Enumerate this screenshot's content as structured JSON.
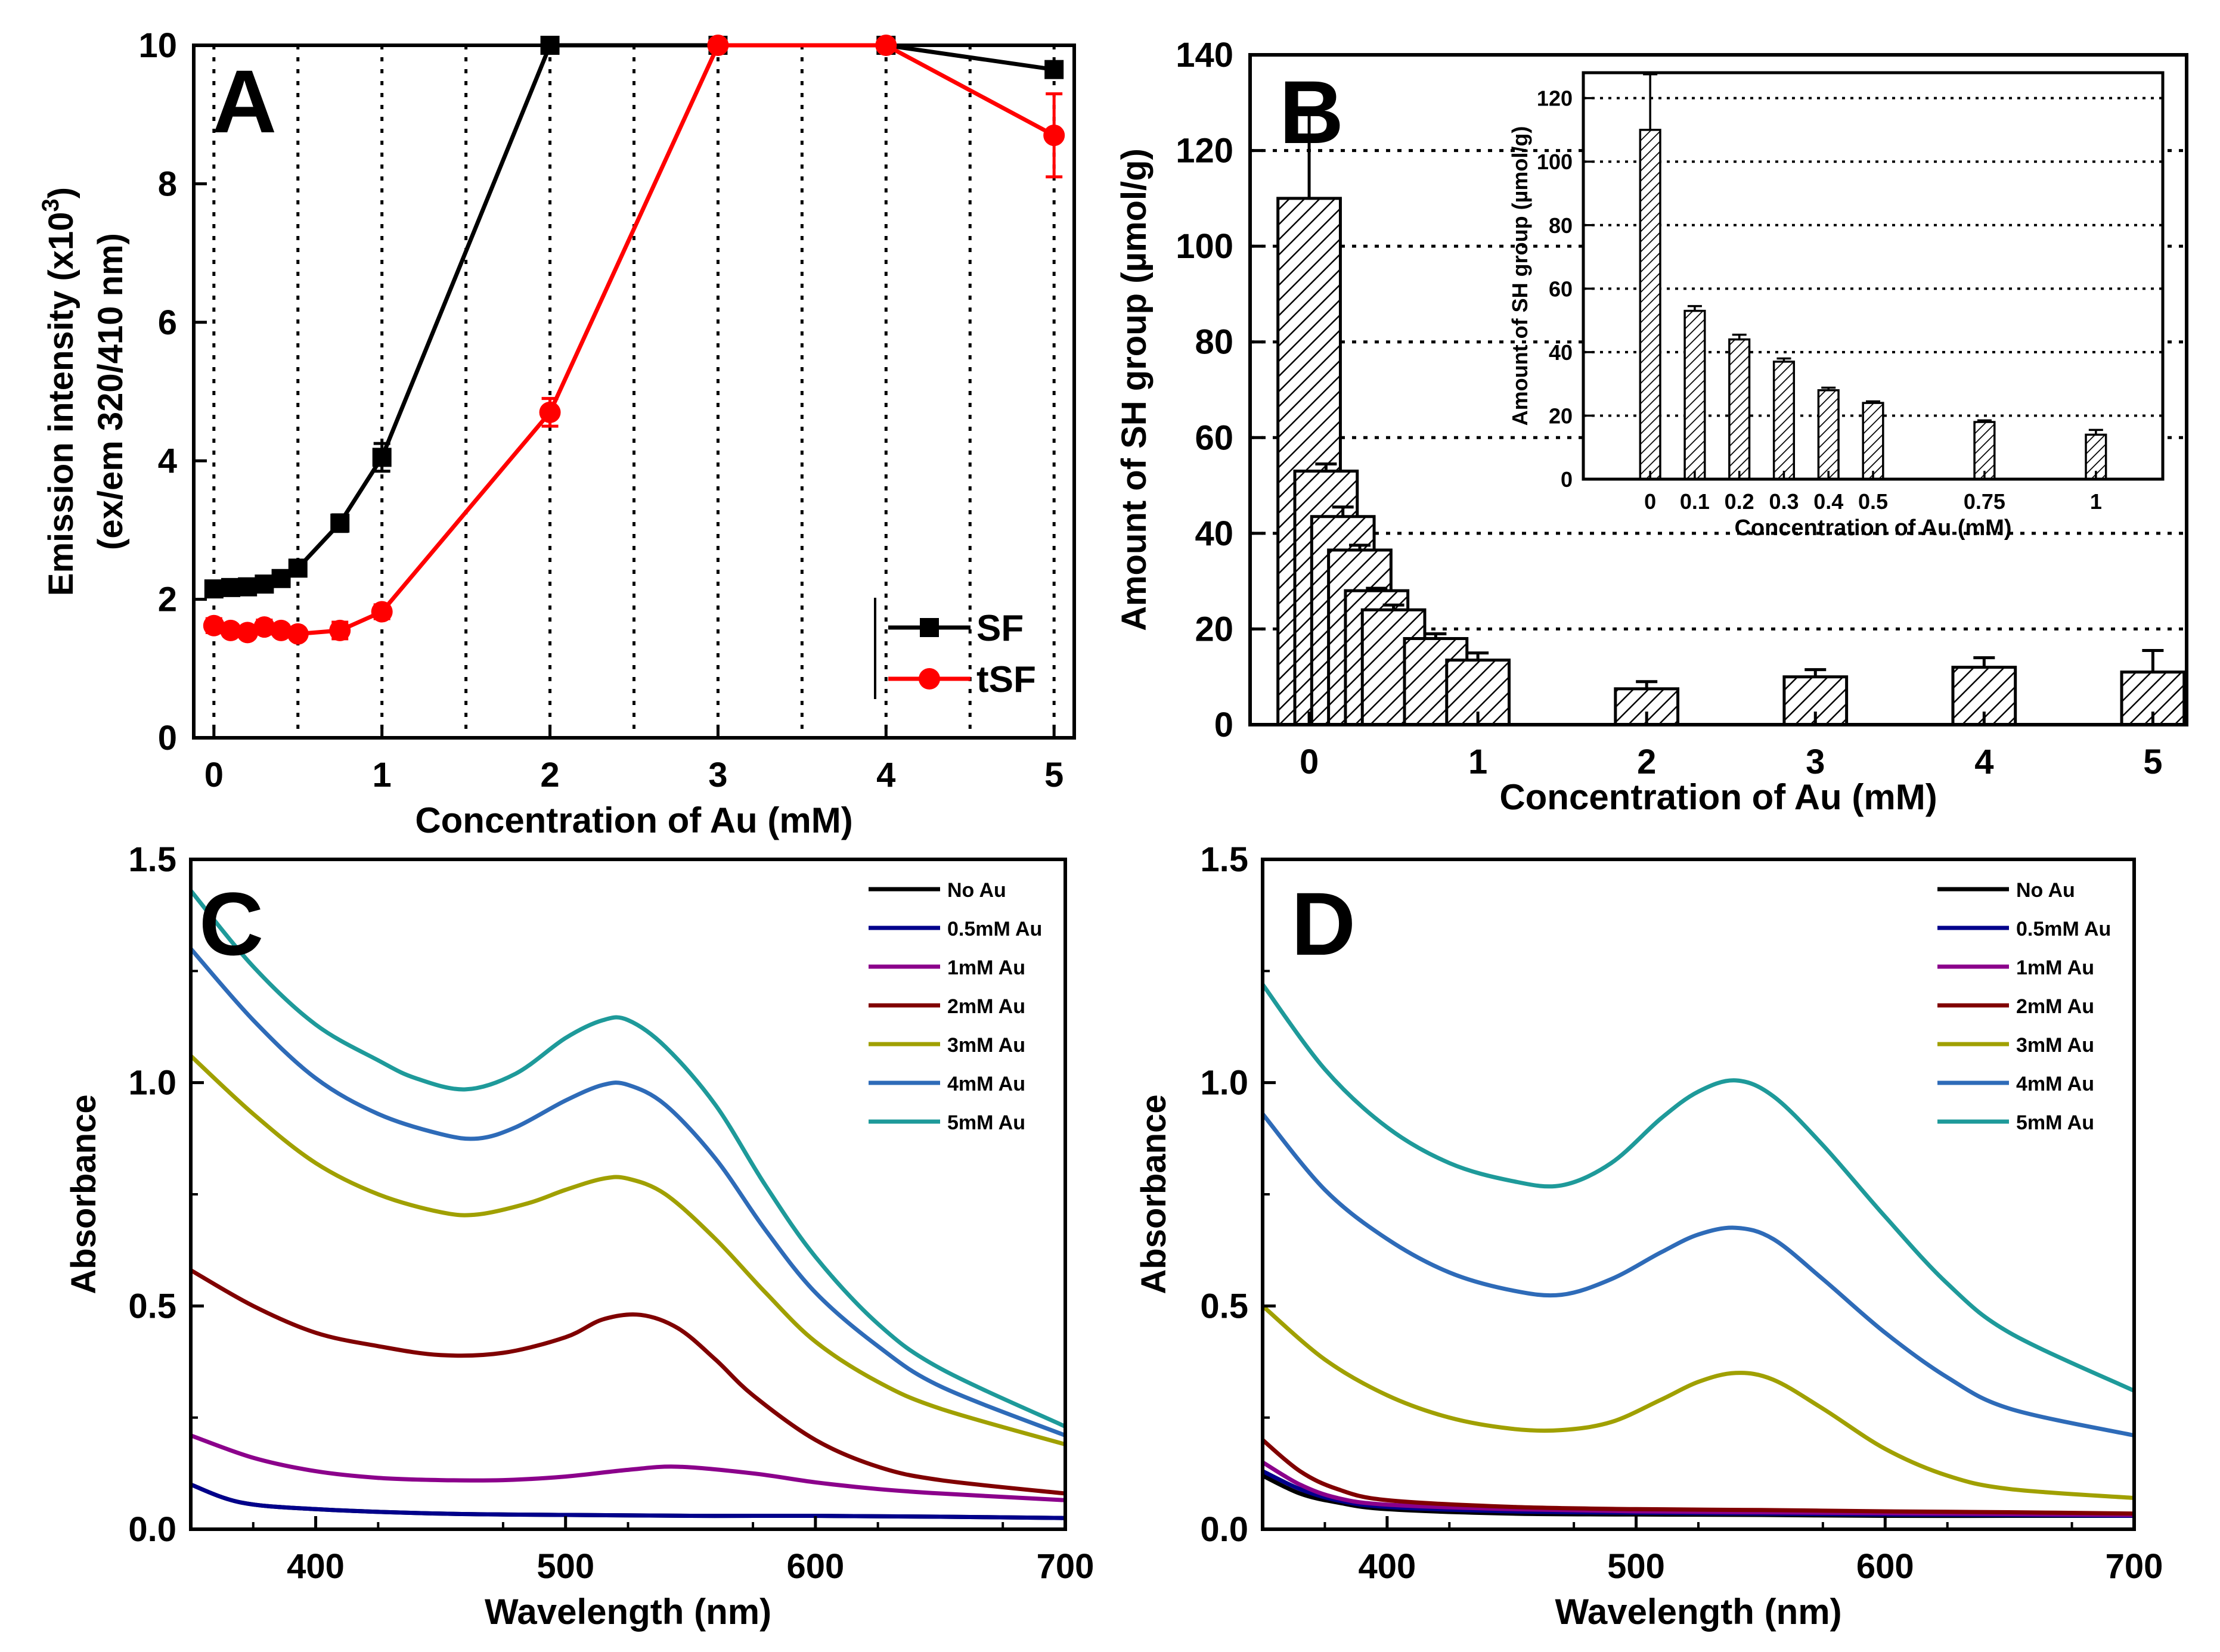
{
  "chart_data": [
    {
      "id": "A",
      "type": "line",
      "panel_label": "A",
      "xlabel": "Concentration of Au (mM)",
      "ylabel_line1": "Emission intensity (x10",
      "ylabel_sup": "3",
      "ylabel_line1_end": ")",
      "ylabel_line2": "(ex/em 320/410 nm)",
      "xlim": [
        -0.12,
        5.12
      ],
      "ylim": [
        0,
        10
      ],
      "xticks": [
        "0",
        "1",
        "2",
        "3",
        "4",
        "5"
      ],
      "xtick_values": [
        0,
        1,
        2,
        3,
        4,
        5
      ],
      "yticks": [
        "0",
        "2",
        "4",
        "6",
        "8",
        "10"
      ],
      "ytick_values": [
        0,
        2,
        4,
        6,
        8,
        10
      ],
      "gridlines_x": [
        0,
        0.5,
        1,
        1.5,
        2,
        2.5,
        3,
        3.5,
        4,
        4.5,
        5
      ],
      "legend_position": "bottom-right",
      "series": [
        {
          "name": "SF",
          "color": "#000000",
          "marker": "square",
          "x": [
            0,
            0.1,
            0.2,
            0.3,
            0.4,
            0.5,
            0.75,
            1,
            2,
            3,
            4,
            5
          ],
          "y": [
            2.15,
            2.17,
            2.18,
            2.22,
            2.3,
            2.45,
            3.1,
            4.05,
            10.0,
            10.0,
            10.0,
            9.65
          ],
          "err": [
            0.06,
            0.05,
            0.05,
            0.05,
            0.05,
            0.08,
            0.12,
            0.2,
            0.05,
            0.05,
            0.05,
            0.1
          ]
        },
        {
          "name": "tSF",
          "color": "#ff0000",
          "marker": "circle",
          "x": [
            0,
            0.1,
            0.2,
            0.3,
            0.4,
            0.5,
            0.75,
            1,
            2,
            3,
            4,
            5
          ],
          "y": [
            1.62,
            1.55,
            1.52,
            1.6,
            1.55,
            1.5,
            1.55,
            1.82,
            4.7,
            10.0,
            10.0,
            8.7
          ],
          "err": [
            0.1,
            0.08,
            0.08,
            0.1,
            0.08,
            0.08,
            0.12,
            0.1,
            0.2,
            0.05,
            0.05,
            0.6
          ]
        }
      ]
    },
    {
      "id": "B",
      "type": "bar",
      "panel_label": "B",
      "xlabel": "Concentration of Au (mM)",
      "ylabel": "Amount of SH group (µmol/g)",
      "xlim": [
        -0.35,
        5.2
      ],
      "ylim": [
        0,
        140
      ],
      "xticks": [
        "0",
        "1",
        "2",
        "3",
        "4",
        "5"
      ],
      "xtick_values": [
        0,
        1,
        2,
        3,
        4,
        5
      ],
      "yticks": [
        "0",
        "20",
        "40",
        "60",
        "80",
        "100",
        "120",
        "140"
      ],
      "ytick_values": [
        0,
        20,
        40,
        60,
        80,
        100,
        120,
        140
      ],
      "gridlines_y": [
        20,
        40,
        60,
        80,
        100,
        120,
        140
      ],
      "x": [
        0,
        0.1,
        0.2,
        0.3,
        0.4,
        0.5,
        0.75,
        1,
        2,
        3,
        4,
        5
      ],
      "values": [
        110,
        53,
        43.5,
        36.5,
        28,
        24,
        18,
        13.5,
        7.5,
        10,
        12,
        11
      ],
      "err": [
        17.5,
        1.5,
        2,
        1,
        0.5,
        1,
        1,
        1.5,
        1.5,
        1.5,
        2,
        4.5
      ],
      "bar_width": 0.37,
      "inset": {
        "type": "bar",
        "xlabel": "Concentration of Au (mM)",
        "ylabel": "Amount of SH group (µmol/g)",
        "ylim": [
          0,
          128
        ],
        "yticks": [
          "0",
          "20",
          "40",
          "60",
          "80",
          "100",
          "120"
        ],
        "ytick_values": [
          0,
          20,
          40,
          60,
          80,
          100,
          120
        ],
        "gridlines_y": [
          20,
          40,
          60,
          80,
          100,
          120
        ],
        "xlim": [
          -0.15,
          1.15
        ],
        "categories": [
          "0",
          "0.1",
          "0.2",
          "0.3",
          "0.4",
          "0.5",
          "0.75",
          "1"
        ],
        "x": [
          0,
          0.1,
          0.2,
          0.3,
          0.4,
          0.5,
          0.75,
          1
        ],
        "values": [
          110,
          53,
          44,
          37,
          28,
          24,
          18,
          14
        ],
        "err": [
          17.5,
          1.5,
          1.5,
          1,
          0.8,
          0.5,
          0.5,
          1.5
        ],
        "bar_width": 0.045
      }
    },
    {
      "id": "C",
      "type": "line",
      "panel_label": "C",
      "xlabel": "Wavelength (nm)",
      "ylabel": "Absorbance",
      "xlim": [
        350,
        700
      ],
      "ylim": [
        0,
        1.5
      ],
      "xticks": [
        "400",
        "500",
        "600",
        "700"
      ],
      "xtick_values": [
        400,
        500,
        600,
        700
      ],
      "yticks": [
        "0.0",
        "0.5",
        "1.0",
        "1.5"
      ],
      "ytick_values": [
        0,
        0.5,
        1.0,
        1.5
      ],
      "legend_position": "top-right",
      "series": [
        {
          "name": "No Au",
          "color": "#000000",
          "x": [
            350,
            370,
            400,
            450,
            500,
            550,
            600,
            650,
            700
          ],
          "y": [
            0.1,
            0.06,
            0.045,
            0.035,
            0.032,
            0.03,
            0.03,
            0.028,
            0.025
          ]
        },
        {
          "name": "0.5mM Au",
          "color": "#00008b",
          "x": [
            350,
            370,
            400,
            450,
            500,
            550,
            600,
            650,
            700
          ],
          "y": [
            0.1,
            0.06,
            0.045,
            0.035,
            0.032,
            0.03,
            0.03,
            0.028,
            0.025
          ]
        },
        {
          "name": "1mM Au",
          "color": "#8b008b",
          "x": [
            350,
            375,
            400,
            425,
            450,
            475,
            500,
            525,
            545,
            575,
            600,
            625,
            650,
            700
          ],
          "y": [
            0.21,
            0.16,
            0.13,
            0.115,
            0.11,
            0.11,
            0.118,
            0.133,
            0.14,
            0.125,
            0.105,
            0.09,
            0.08,
            0.065
          ]
        },
        {
          "name": "2mM Au",
          "color": "#800000",
          "x": [
            350,
            375,
            400,
            425,
            450,
            475,
            500,
            515,
            530,
            545,
            560,
            575,
            600,
            625,
            650,
            700
          ],
          "y": [
            0.58,
            0.5,
            0.44,
            0.41,
            0.39,
            0.395,
            0.43,
            0.47,
            0.48,
            0.45,
            0.38,
            0.3,
            0.2,
            0.14,
            0.11,
            0.08
          ]
        },
        {
          "name": "3mM Au",
          "color": "#a0a000",
          "x": [
            350,
            375,
            400,
            425,
            450,
            465,
            485,
            500,
            515,
            525,
            540,
            560,
            580,
            600,
            625,
            650,
            700
          ],
          "y": [
            1.06,
            0.93,
            0.82,
            0.75,
            0.71,
            0.705,
            0.73,
            0.76,
            0.785,
            0.785,
            0.75,
            0.65,
            0.53,
            0.42,
            0.33,
            0.27,
            0.19
          ]
        },
        {
          "name": "4mM Au",
          "color": "#2e6bb8",
          "x": [
            350,
            375,
            400,
            425,
            450,
            465,
            480,
            500,
            515,
            525,
            540,
            560,
            580,
            600,
            625,
            650,
            700
          ],
          "y": [
            1.3,
            1.14,
            1.01,
            0.93,
            0.885,
            0.875,
            0.9,
            0.96,
            0.995,
            0.995,
            0.95,
            0.83,
            0.67,
            0.53,
            0.41,
            0.32,
            0.21
          ]
        },
        {
          "name": "5mM Au",
          "color": "#1e9a9a",
          "x": [
            350,
            375,
            400,
            425,
            440,
            460,
            480,
            500,
            515,
            525,
            540,
            560,
            580,
            600,
            625,
            650,
            700
          ],
          "y": [
            1.43,
            1.26,
            1.13,
            1.05,
            1.01,
            0.985,
            1.02,
            1.1,
            1.14,
            1.14,
            1.08,
            0.95,
            0.77,
            0.61,
            0.46,
            0.36,
            0.23
          ]
        }
      ]
    },
    {
      "id": "D",
      "type": "line",
      "panel_label": "D",
      "xlabel": "Wavelength (nm)",
      "ylabel": "Absorbance",
      "xlim": [
        350,
        700
      ],
      "ylim": [
        0,
        1.5
      ],
      "xticks": [
        "400",
        "500",
        "600",
        "700"
      ],
      "xtick_values": [
        400,
        500,
        600,
        700
      ],
      "yticks": [
        "0.0",
        "0.5",
        "1.0",
        "1.5"
      ],
      "ytick_values": [
        0,
        0.5,
        1.0,
        1.5
      ],
      "legend_position": "top-right",
      "series": [
        {
          "name": "No Au",
          "color": "#000000",
          "x": [
            350,
            365,
            380,
            400,
            450,
            500,
            550,
            600,
            650,
            700
          ],
          "y": [
            0.12,
            0.08,
            0.06,
            0.045,
            0.035,
            0.033,
            0.032,
            0.03,
            0.03,
            0.03
          ]
        },
        {
          "name": "0.5mM Au",
          "color": "#00008b",
          "x": [
            350,
            365,
            380,
            400,
            450,
            500,
            550,
            600,
            650,
            700
          ],
          "y": [
            0.13,
            0.09,
            0.065,
            0.05,
            0.04,
            0.037,
            0.035,
            0.033,
            0.032,
            0.03
          ]
        },
        {
          "name": "1mM Au",
          "color": "#8b008b",
          "x": [
            350,
            365,
            380,
            400,
            450,
            500,
            550,
            600,
            650,
            700
          ],
          "y": [
            0.15,
            0.1,
            0.07,
            0.055,
            0.045,
            0.04,
            0.038,
            0.036,
            0.034,
            0.032
          ]
        },
        {
          "name": "2mM Au",
          "color": "#800000",
          "x": [
            350,
            365,
            380,
            400,
            450,
            500,
            550,
            600,
            650,
            700
          ],
          "y": [
            0.2,
            0.13,
            0.09,
            0.065,
            0.05,
            0.045,
            0.043,
            0.04,
            0.038,
            0.035
          ]
        },
        {
          "name": "3mM Au",
          "color": "#a0a000",
          "x": [
            350,
            375,
            400,
            425,
            450,
            470,
            490,
            510,
            525,
            540,
            555,
            575,
            600,
            625,
            650,
            700
          ],
          "y": [
            0.5,
            0.38,
            0.3,
            0.25,
            0.225,
            0.222,
            0.24,
            0.29,
            0.33,
            0.35,
            0.335,
            0.27,
            0.18,
            0.12,
            0.09,
            0.07
          ]
        },
        {
          "name": "4mM Au",
          "color": "#2e6bb8",
          "x": [
            350,
            375,
            400,
            425,
            450,
            470,
            490,
            510,
            525,
            540,
            555,
            575,
            600,
            625,
            650,
            700
          ],
          "y": [
            0.93,
            0.76,
            0.65,
            0.575,
            0.535,
            0.525,
            0.56,
            0.62,
            0.66,
            0.675,
            0.65,
            0.56,
            0.44,
            0.34,
            0.27,
            0.21
          ]
        },
        {
          "name": "5mM Au",
          "color": "#1e9a9a",
          "x": [
            350,
            375,
            400,
            425,
            450,
            470,
            490,
            510,
            525,
            540,
            555,
            575,
            600,
            625,
            650,
            700
          ],
          "y": [
            1.22,
            1.03,
            0.9,
            0.82,
            0.78,
            0.77,
            0.82,
            0.92,
            0.98,
            1.005,
            0.97,
            0.86,
            0.7,
            0.55,
            0.44,
            0.31
          ]
        }
      ]
    }
  ]
}
